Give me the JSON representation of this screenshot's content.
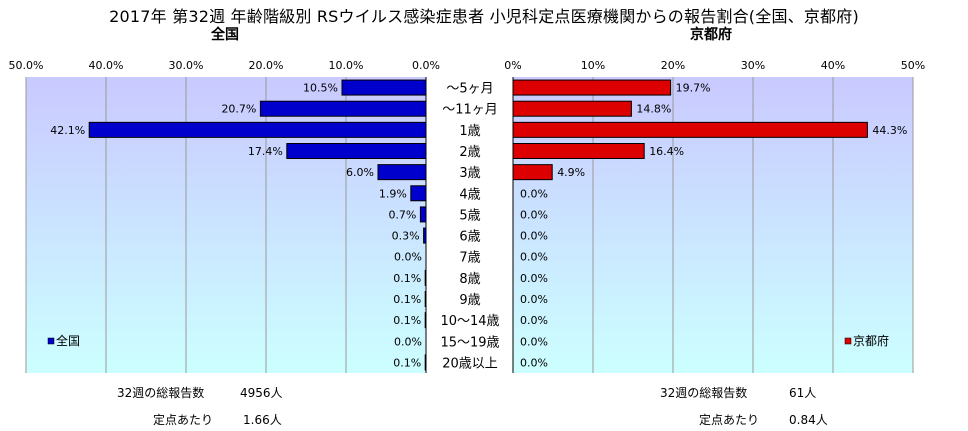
{
  "title": "2017年 第32週 年齢階級別 RSウイルス感染症患者 小児科定点医療機関からの報告割合(全国、京都府)",
  "left_panel": {
    "subtitle": "全国",
    "legend": "全国",
    "total_label": "32週の総報告数",
    "total_value": "4956人",
    "per_label": "定点あたり",
    "per_value": "1.66人"
  },
  "right_panel": {
    "subtitle": "京都府",
    "legend": "京都府",
    "total_label": "32週の総報告数",
    "total_value": "61人",
    "per_label": "定点あたり",
    "per_value": "0.84人"
  },
  "chart_data": [
    {
      "type": "bar",
      "orientation": "horizontal",
      "direction": "right-to-left",
      "title": "全国",
      "categories": [
        "〜5ヶ月",
        "〜11ヶ月",
        "1歳",
        "2歳",
        "3歳",
        "4歳",
        "5歳",
        "6歳",
        "7歳",
        "8歳",
        "9歳",
        "10〜14歳",
        "15〜19歳",
        "20歳以上"
      ],
      "series": [
        {
          "name": "全国",
          "color": "#0000cc",
          "values": [
            10.5,
            20.7,
            42.1,
            17.4,
            6.0,
            1.9,
            0.7,
            0.3,
            0.0,
            0.1,
            0.1,
            0.1,
            0.0,
            0.1
          ],
          "labels": [
            "10.5%",
            "20.7%",
            "42.1%",
            "17.4%",
            "6.0%",
            "1.9%",
            "0.7%",
            "0.3%",
            "0.0%",
            "0.1%",
            "0.1%",
            "0.1%",
            "0.0%",
            "0.1%"
          ]
        }
      ],
      "xlim": [
        0,
        50
      ],
      "xticks": [
        "50.0%",
        "40.0%",
        "30.0%",
        "20.0%",
        "10.0%",
        "0.0%"
      ],
      "grid": true,
      "legend_position": "bottom-left"
    },
    {
      "type": "bar",
      "orientation": "horizontal",
      "direction": "left-to-right",
      "title": "京都府",
      "categories": [
        "〜5ヶ月",
        "〜11ヶ月",
        "1歳",
        "2歳",
        "3歳",
        "4歳",
        "5歳",
        "6歳",
        "7歳",
        "8歳",
        "9歳",
        "10〜14歳",
        "15〜19歳",
        "20歳以上"
      ],
      "series": [
        {
          "name": "京都府",
          "color": "#dd0000",
          "values": [
            19.7,
            14.8,
            44.3,
            16.4,
            4.9,
            0.0,
            0.0,
            0.0,
            0.0,
            0.0,
            0.0,
            0.0,
            0.0,
            0.0
          ],
          "labels": [
            "19.7%",
            "14.8%",
            "44.3%",
            "16.4%",
            "4.9%",
            "0.0%",
            "0.0%",
            "0.0%",
            "0.0%",
            "0.0%",
            "0.0%",
            "0.0%",
            "0.0%",
            "0.0%"
          ]
        }
      ],
      "xlim": [
        0,
        50
      ],
      "xticks": [
        "0%",
        "10%",
        "20%",
        "30%",
        "40%",
        "50%"
      ],
      "grid": true,
      "legend_position": "bottom-right"
    }
  ],
  "colors": {
    "left_bar": "#0000cc",
    "right_bar": "#dd0000",
    "plot_bg_top": "#c9c9ff",
    "plot_bg_bottom": "#ccffff"
  }
}
